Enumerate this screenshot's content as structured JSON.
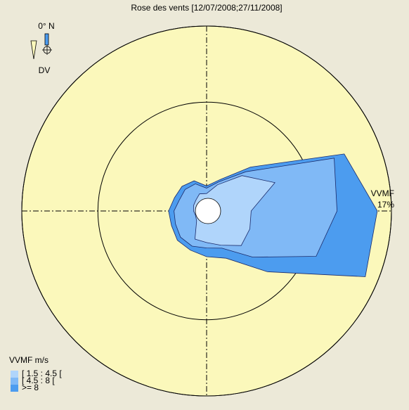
{
  "chart_data": {
    "type": "windrose",
    "title": "Rose des vents [12/07/2008;27/11/2008]",
    "north_label": "0° N",
    "direction_label": "DV",
    "r_label": "VVMF",
    "legend_title": "VVMF m/s",
    "angles": [
      0,
      22.5,
      45,
      67.5,
      90,
      112.5,
      135,
      157.5,
      180,
      202.5,
      225,
      247.5,
      270,
      292.5,
      315,
      337.5
    ],
    "series": [
      {
        "name": "[ 1.5 : 4.5 [",
        "color": "#b0d5fb",
        "values": [
          1.6,
          2.6,
          4.6,
          6.8,
          4.1,
          4.3,
          4.5,
          3.4,
          2.9,
          2.8,
          1.3,
          1.1,
          1.2,
          1.3,
          1.4,
          1.7
        ]
      },
      {
        "name": "[ 4.5 : 8 [",
        "color": "#80b9f6",
        "values": [
          0.5,
          0.3,
          0.5,
          5.9,
          7.9,
          6.6,
          1.5,
          0.3,
          0.5,
          0.7,
          2.1,
          2.0,
          1.8,
          1.4,
          1.4,
          1.0
        ]
      },
      {
        "name": ">= 8",
        "color": "#4c9cef",
        "values": [
          0.2,
          0.2,
          0.6,
          1.0,
          3.7,
          4.9,
          1.9,
          1.0,
          0.8,
          0.4,
          0.4,
          0.4,
          0.5,
          0.5,
          0.4,
          0.3
        ]
      }
    ],
    "rlim": [
      0,
      17
    ],
    "rticks": [
      10,
      {
        "value": 17,
        "label": "17%"
      }
    ]
  }
}
